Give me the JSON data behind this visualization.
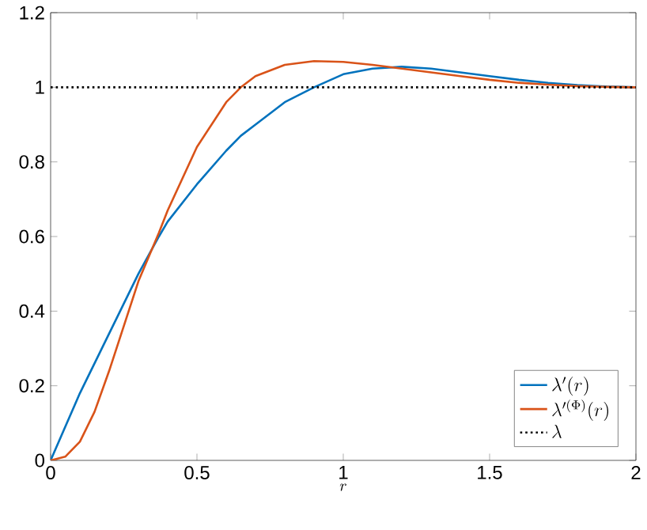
{
  "chart_data": {
    "type": "line",
    "xlabel": "r",
    "x": [
      0,
      0.05,
      0.1,
      0.15,
      0.2,
      0.25,
      0.3,
      0.37,
      0.4,
      0.5,
      0.6,
      0.65,
      0.7,
      0.8,
      0.9,
      1.0,
      1.1,
      1.2,
      1.3,
      1.4,
      1.5,
      1.6,
      1.7,
      1.8,
      1.9,
      2.0
    ],
    "series": [
      {
        "name": "\\lambda'(r)",
        "color": "#0072bd",
        "values": [
          0,
          0.09,
          0.18,
          0.26,
          0.34,
          0.42,
          0.5,
          0.6,
          0.64,
          0.74,
          0.83,
          0.87,
          0.9,
          0.96,
          1.0,
          1.035,
          1.05,
          1.055,
          1.05,
          1.04,
          1.03,
          1.02,
          1.012,
          1.006,
          1.002,
          1.0
        ]
      },
      {
        "name": "\\lambda'^{(\\Phi)}(r)",
        "color": "#d95319",
        "values": [
          0,
          0.01,
          0.05,
          0.13,
          0.24,
          0.36,
          0.48,
          0.61,
          0.67,
          0.84,
          0.96,
          1.0,
          1.03,
          1.06,
          1.07,
          1.068,
          1.06,
          1.05,
          1.04,
          1.03,
          1.02,
          1.012,
          1.007,
          1.003,
          1.001,
          1.0
        ]
      }
    ],
    "ref_lines": [
      {
        "axis": "y",
        "value": 1,
        "label": "\\lambda",
        "color": "#000000",
        "line_style": "dotted"
      }
    ],
    "xlim": [
      0,
      2
    ],
    "ylim": [
      0,
      1.2
    ],
    "xticks": [
      0,
      0.5,
      1,
      1.5,
      2
    ],
    "yticks": [
      0,
      0.2,
      0.4,
      0.6,
      0.8,
      1,
      1.2
    ],
    "grid": false,
    "legend": "bottom right",
    "marker": "none",
    "line_style": "solid"
  }
}
